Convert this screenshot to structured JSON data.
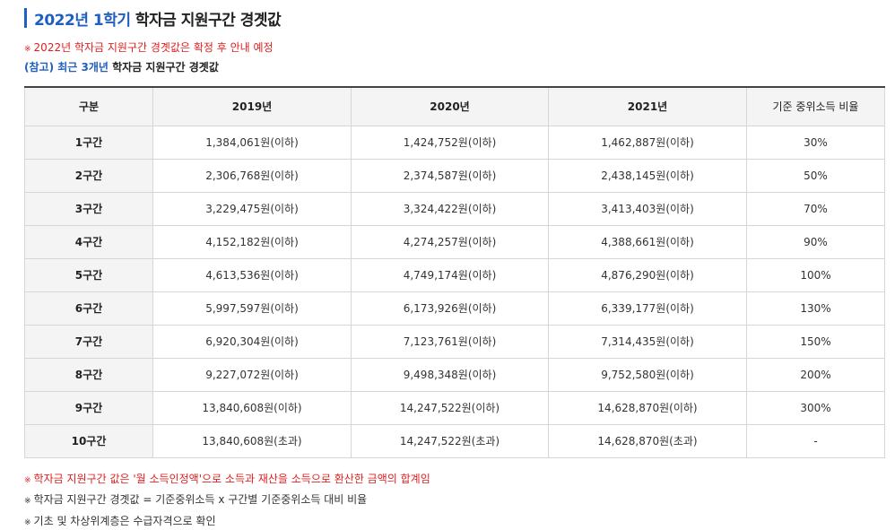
{
  "title": {
    "highlight": "2022년 1학기",
    "rest": " 학자금 지원구간 경곗값"
  },
  "note_top": "2022년 학자금 지원구간 경곗값은 확정 후 안내 예정",
  "sub": {
    "highlight": "(참고) 최근 3개년",
    "rest": " 학자금 지원구간 경곗값"
  },
  "mark": "※",
  "table": {
    "headers": [
      "구분",
      "2019년",
      "2020년",
      "2021년",
      "기준 중위소득 비율"
    ],
    "rows": [
      [
        "1구간",
        "1,384,061원(이하)",
        "1,424,752원(이하)",
        "1,462,887원(이하)",
        "30%"
      ],
      [
        "2구간",
        "2,306,768원(이하)",
        "2,374,587원(이하)",
        "2,438,145원(이하)",
        "50%"
      ],
      [
        "3구간",
        "3,229,475원(이하)",
        "3,324,422원(이하)",
        "3,413,403원(이하)",
        "70%"
      ],
      [
        "4구간",
        "4,152,182원(이하)",
        "4,274,257원(이하)",
        "4,388,661원(이하)",
        "90%"
      ],
      [
        "5구간",
        "4,613,536원(이하)",
        "4,749,174원(이하)",
        "4,876,290원(이하)",
        "100%"
      ],
      [
        "6구간",
        "5,997,597원(이하)",
        "6,173,926원(이하)",
        "6,339,177원(이하)",
        "130%"
      ],
      [
        "7구간",
        "6,920,304원(이하)",
        "7,123,761원(이하)",
        "7,314,435원(이하)",
        "150%"
      ],
      [
        "8구간",
        "9,227,072원(이하)",
        "9,498,348원(이하)",
        "9,752,580원(이하)",
        "200%"
      ],
      [
        "9구간",
        "13,840,608원(이하)",
        "14,247,522원(이하)",
        "14,628,870원(이하)",
        "300%"
      ],
      [
        "10구간",
        "13,840,608원(초과)",
        "14,247,522원(초과)",
        "14,628,870원(초과)",
        "-"
      ]
    ]
  },
  "notes_bottom": [
    "학자금 지원구간 값은 '월 소득인정액'으로 소득과 재산을 소득으로 환산한 금액의 합계임",
    "학자금 지원구간 경곗값 = 기준중위소득 x 구간별 기준중위소득 대비 비율",
    "기초 및 차상위계층은 수급자격으로 확인"
  ],
  "colors": {
    "accent": "#1f5fbf",
    "warning": "#e02020",
    "header_bg": "#f4f4f4"
  }
}
